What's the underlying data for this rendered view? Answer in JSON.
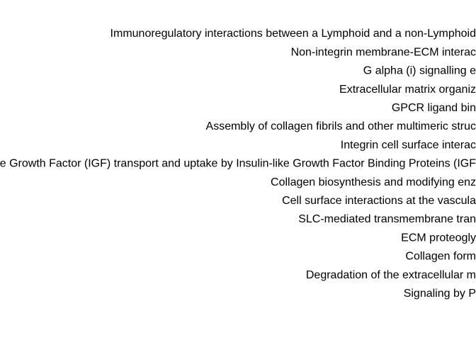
{
  "chart_data": {
    "type": "bar",
    "categories": [
      "Immunoregulatory interactions between a Lymphoid and a non-Lymphoid",
      "Non-integrin membrane-ECM interac",
      "G alpha (i) signalling e",
      "Extracellular matrix organiz",
      "GPCR ligand bin",
      "Assembly of collagen fibrils and other multimeric struc",
      "Integrin cell surface interac",
      "ike Growth Factor (IGF) transport and uptake by Insulin-like Growth Factor Binding Proteins (IGF",
      "Collagen biosynthesis and modifying enz",
      "Cell surface interactions at the vascula",
      "SLC-mediated transmembrane tran",
      "ECM proteogly",
      "Collagen form",
      "Degradation of the extracellular m",
      "Signaling by P"
    ]
  }
}
